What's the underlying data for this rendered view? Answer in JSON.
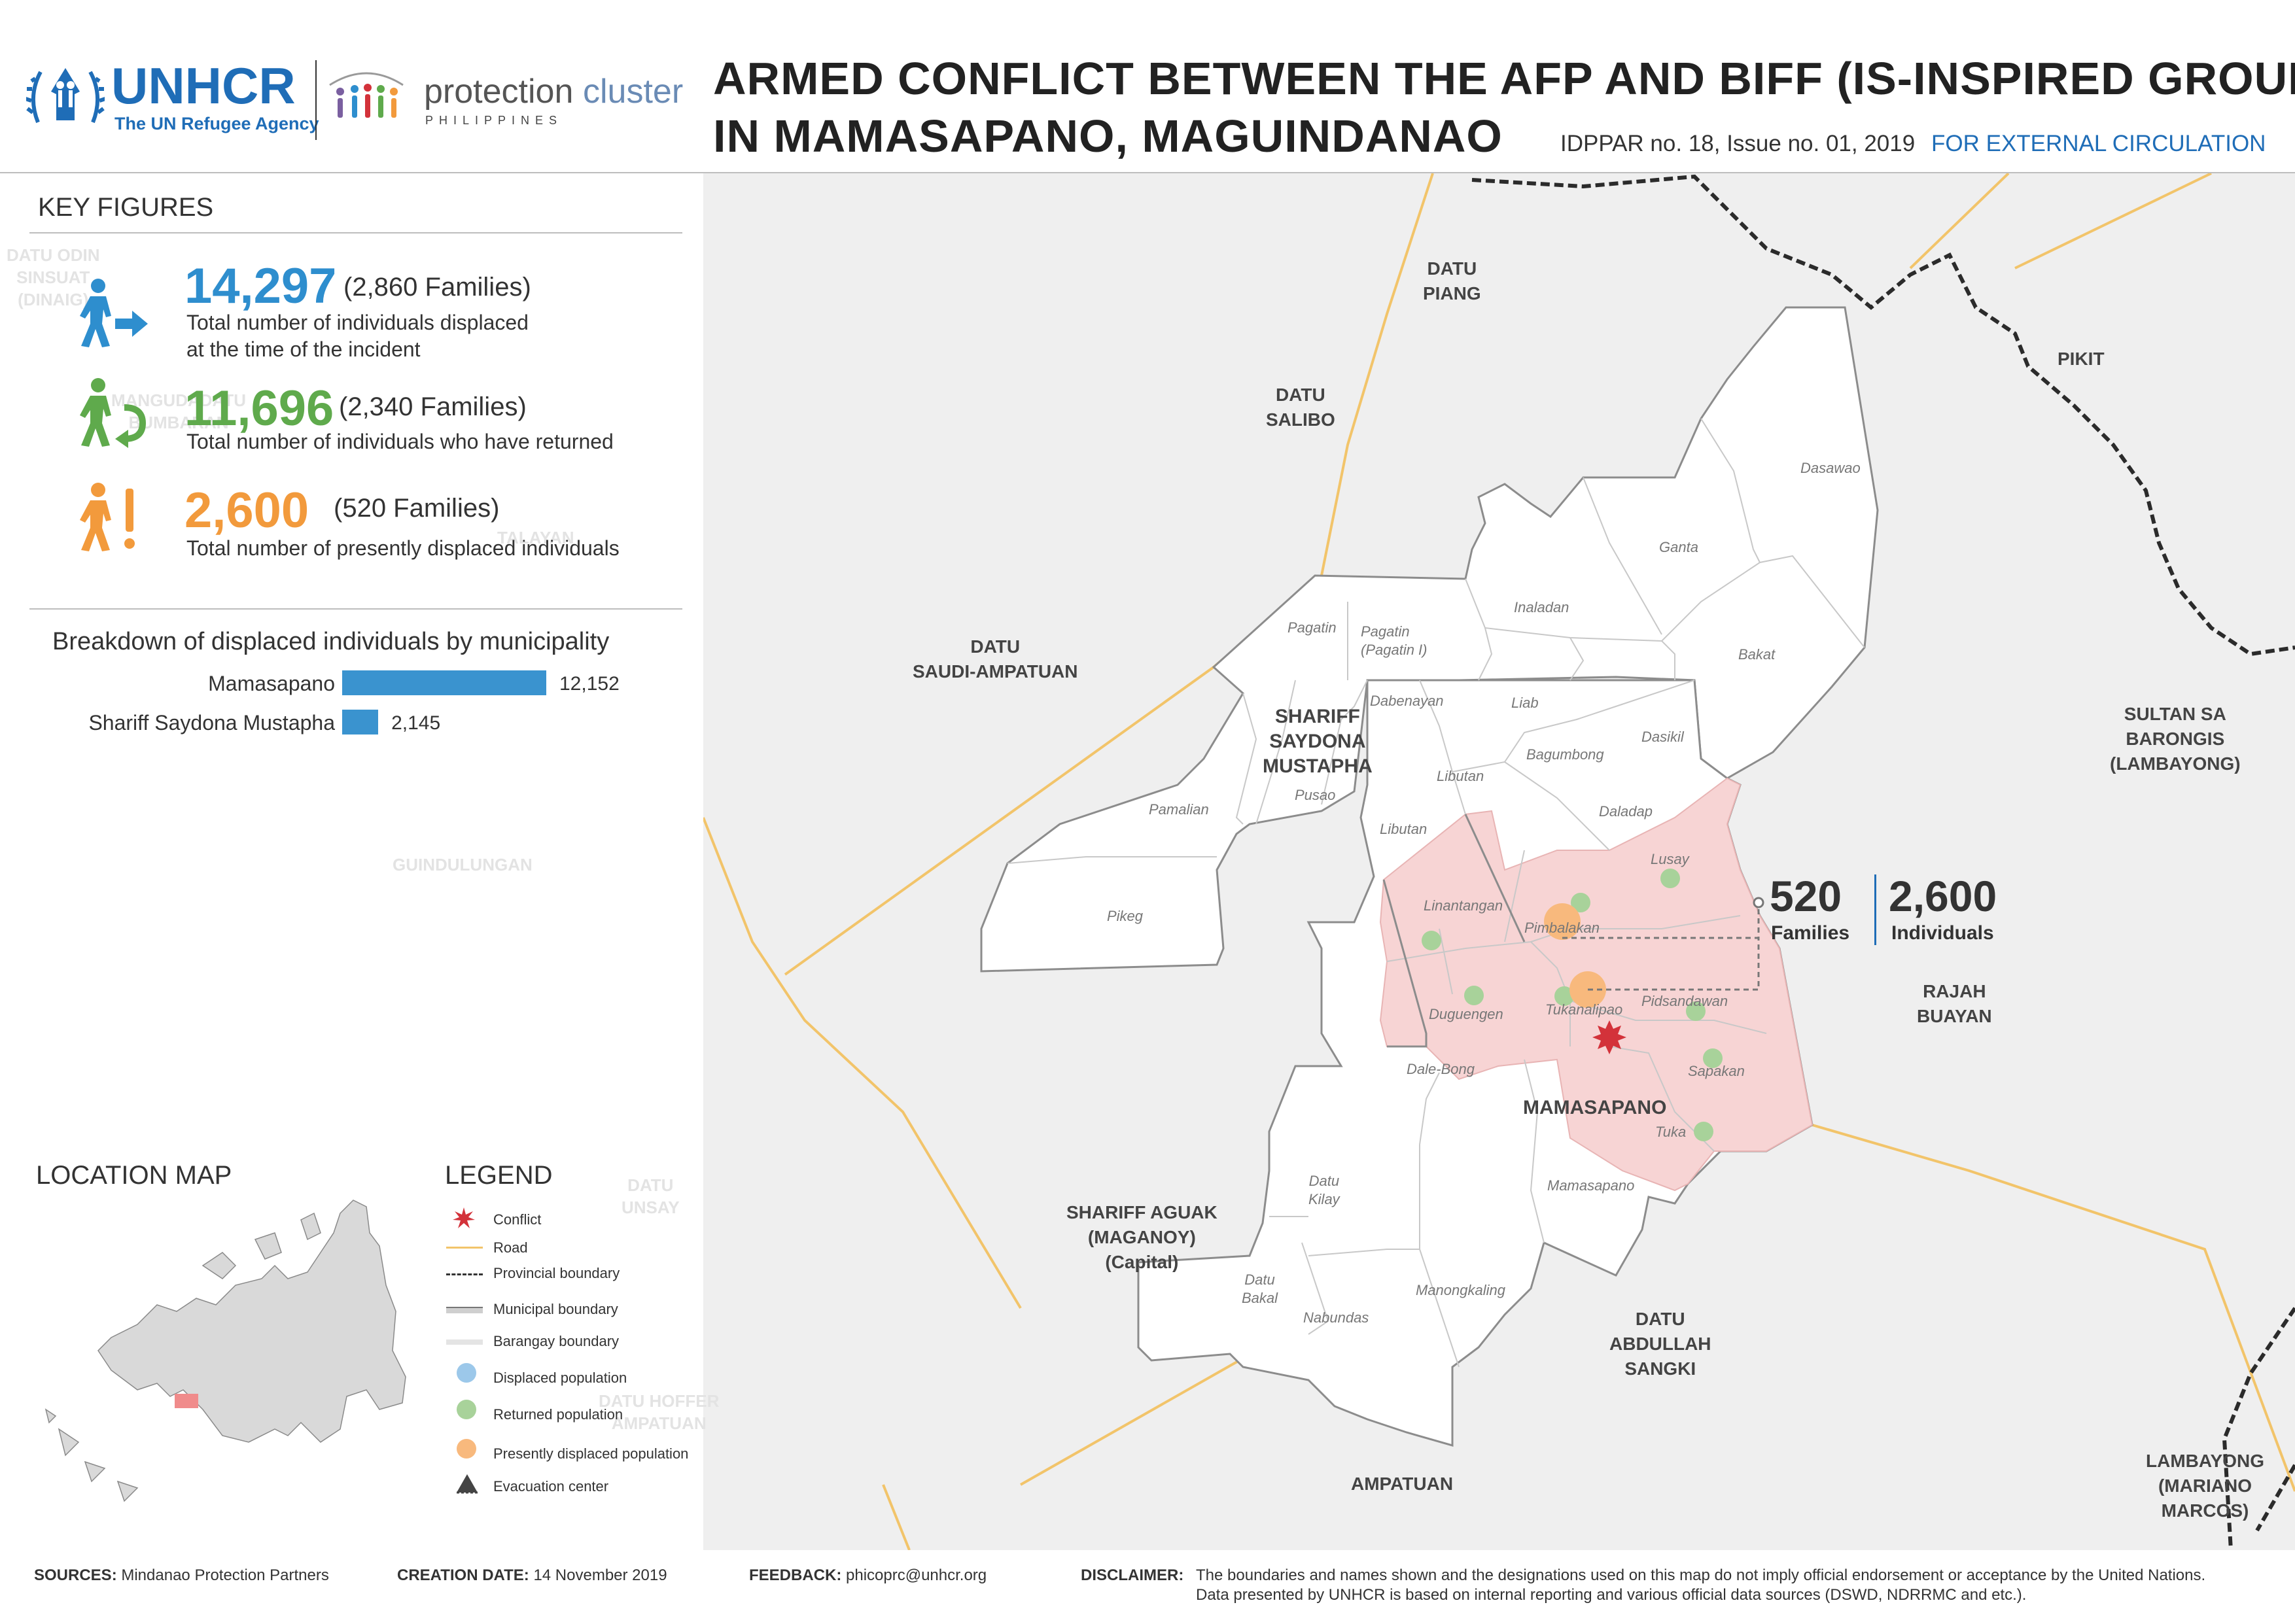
{
  "header": {
    "title_line1": "ARMED CONFLICT BETWEEN THE AFP AND BIFF (IS-INSPIRED GROUP)",
    "title_line2": "IN MAMASAPANO, MAGUINDANAO",
    "issue": "IDPPAR no. 18, Issue no. 01, 2019",
    "circulation": "FOR EXTERNAL CIRCULATION",
    "unhcr_name": "UNHCR",
    "unhcr_tagline": "The UN Refugee Agency",
    "cluster_word1": "protection",
    "cluster_word2": "cluster",
    "cluster_country": "PHILIPPINES"
  },
  "key_figures": {
    "heading": "KEY FIGURES",
    "items": [
      {
        "number": "14,297",
        "families": "(2,860 Families)",
        "desc_line1": "Total number of individuals displaced",
        "desc_line2": "at the time of the incident",
        "color": "#2e8ece",
        "icon": "displaced-person-icon"
      },
      {
        "number": "11,696",
        "families": "(2,340 Families)",
        "desc_line1": "Total number of individuals who have returned",
        "desc_line2": "",
        "color": "#5faa4c",
        "icon": "returned-person-icon"
      },
      {
        "number": "2,600",
        "families": "(520 Families)",
        "desc_line1": "Total number of presently displaced individuals",
        "desc_line2": "",
        "color": "#f29a3c",
        "icon": "alert-person-icon"
      }
    ]
  },
  "breakdown": {
    "heading": "Breakdown of displaced individuals by municipality"
  },
  "chart_data": {
    "type": "bar",
    "orientation": "horizontal",
    "title": "Breakdown of displaced individuals by municipality",
    "categories": [
      "Mamasapano",
      "Shariff Saydona Mustapha"
    ],
    "values": [
      12152,
      2145
    ],
    "value_labels": [
      "12,152",
      "2,145"
    ],
    "xlim": [
      0,
      12152
    ],
    "color": "#3a93cf",
    "grid": false
  },
  "location_map": {
    "heading": "LOCATION MAP"
  },
  "legend": {
    "heading": "LEGEND",
    "items": [
      {
        "label": "Conflict",
        "icon": "conflict-icon"
      },
      {
        "label": "Road",
        "icon": "road-line-icon"
      },
      {
        "label": "Provincial boundary",
        "icon": "provincial-boundary-icon"
      },
      {
        "label": "Municipal boundary",
        "icon": "municipal-boundary-icon"
      },
      {
        "label": "Barangay boundary",
        "icon": "barangay-boundary-icon"
      },
      {
        "label": "Displaced population",
        "icon": "displaced-circle-icon"
      },
      {
        "label": "Returned population",
        "icon": "returned-circle-icon"
      },
      {
        "label": "Presently displaced population",
        "icon": "present-circle-icon"
      },
      {
        "label": "Evacuation center",
        "icon": "evacuation-center-icon"
      }
    ]
  },
  "map": {
    "municipalities": {
      "datu_piang": "DATU\nPIANG",
      "datu_salibo": "DATU\nSALIBO",
      "pikit": "PIKIT",
      "datu_saudi": "DATU\nSAUDI-AMPATUAN",
      "shariff_saydona": "SHARIFF\nSAYDONA\nMUSTAPHA",
      "sultan_sa_barongis": "SULTAN SA\nBARONGIS\n(LAMBAYONG)",
      "rajah_buayan": "RAJAH\nBUAYAN",
      "mamasapano": "MAMASAPANO",
      "shariff_aguak": "SHARIFF AGUAK\n(MAGANOY)\n(Capital)",
      "datu_abdullah_sangki": "DATU\nABDULLAH\nSANGKI",
      "ampatuan": "AMPATUAN",
      "lambayong": "LAMBAYONG\n(MARIANO\nMARCOS)"
    },
    "faint_labels": {
      "datu_odin": "DATU ODIN\nSINSUAT\n(DINAIG)",
      "mangudadatu": "MANGUDADATU\nBUMBARAN",
      "guindulungan": "GUINDULUNGAN",
      "datu_unsay": "DATU\nUNSAY",
      "datu_hoffer": "DATU HOFFER\nAMPATUAN",
      "talayan": "TALAYAN"
    },
    "barangays": {
      "dasawao": "Dasawao",
      "ganta": "Ganta",
      "inaladan": "Inaladan",
      "bakat": "Bakat",
      "pagatin": "Pagatin",
      "pagatin_i": "Pagatin\n(Pagatin I)",
      "dabenayan": "Dabenayan",
      "liab": "Liab",
      "bagumbong": "Bagumbong",
      "dasikil": "Dasikil",
      "libutan1": "Libutan",
      "libutan2": "Libutan",
      "daladap": "Daladap",
      "pamalian": "Pamalian",
      "pusao": "Pusao",
      "pikeg": "Pikeg",
      "lusay": "Lusay",
      "linantangan": "Linantangan",
      "pimbalakan": "Pimbalakan",
      "tukanalipao": "Tukanalipao",
      "pidsandawan": "Pidsandawan",
      "duguengen": "Duguengen",
      "sapakan": "Sapakan",
      "dale_bong": "Dale-Bong",
      "tuka": "Tuka",
      "datu_kilay": "Datu\nKilay",
      "datu_bakal": "Datu\nBakal",
      "nabundas": "Nabundas",
      "mamasapano_b": "Mamasapano",
      "manongkaling": "Manongkaling"
    },
    "callout": {
      "families_num": "520",
      "families_label": "Families",
      "individuals_num": "2,600",
      "individuals_label": "Individuals"
    }
  },
  "footer": {
    "sources_label": "SOURCES:",
    "sources": "Mindanao Protection Partners",
    "creation_label": "CREATION DATE:",
    "creation": "14 November 2019",
    "feedback_label": "FEEDBACK:",
    "feedback": "phicoprc@unhcr.org",
    "disclaimer_label": "DISCLAIMER:",
    "disclaimer_line1": "The boundaries and names shown and the designations used on this map do not imply official endorsement or acceptance by the United Nations.",
    "disclaimer_line2": "Data presented by UNHCR is based on internal reporting and various official data sources (DSWD, NDRRMC and etc.)."
  },
  "colors": {
    "unhcr_blue": "#1f6db7",
    "displaced_blue": "#2e8ece",
    "returned_green": "#5faa4c",
    "present_orange": "#f29a3c",
    "affected_area": "#f7d4d4",
    "road": "#f2c46a",
    "conflict_red": "#d3323a"
  }
}
